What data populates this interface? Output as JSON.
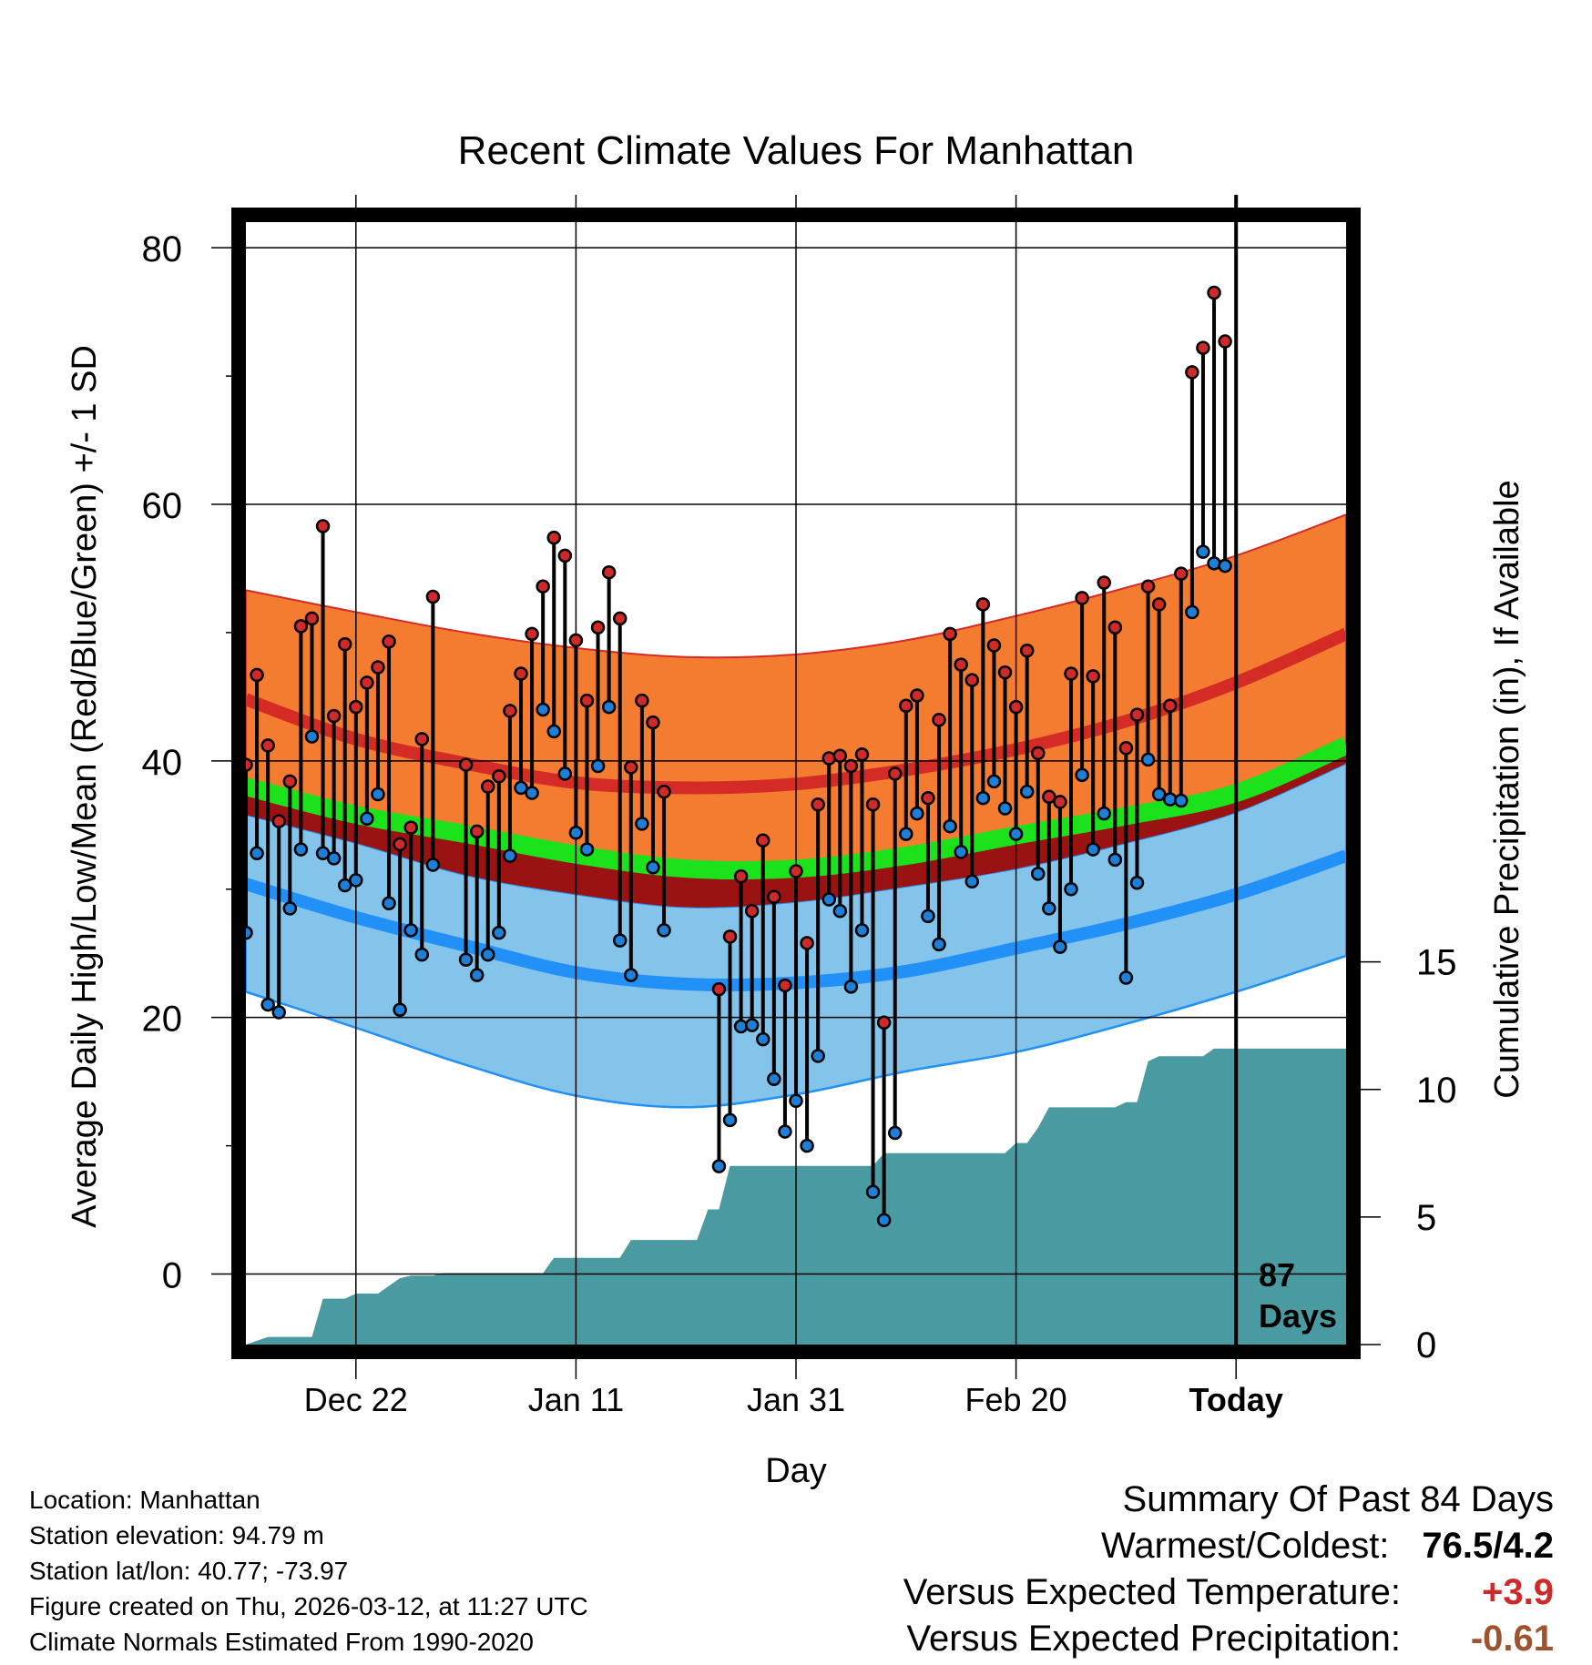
{
  "chart_data": {
    "type": "line",
    "title": "Recent Climate Values For Manhattan",
    "xlabel": "Day",
    "ylabel": "Average Daily High/Low/Mean (Red/Blue/Green) +/- 1 SD",
    "y2label": "Cumulative Precipitation (in), If Available",
    "x_range": [
      -10,
      90
    ],
    "ylim": [
      -5.5,
      82
    ],
    "y_ticks": [
      0,
      20,
      40,
      60,
      80
    ],
    "y2_ticks": [
      0,
      5,
      10,
      15
    ],
    "y2_ticklabels": [
      "0",
      "5",
      "10",
      "15"
    ],
    "y2_range": [
      0,
      44
    ],
    "x_ticks": [
      {
        "day": 0,
        "label": "Dec 22"
      },
      {
        "day": 20,
        "label": "Jan 11"
      },
      {
        "day": 40,
        "label": "Jan 31"
      },
      {
        "day": 60,
        "label": "Feb 20"
      },
      {
        "day": 80,
        "label": "Today"
      }
    ],
    "today_day": 80,
    "today_annotation": [
      "87",
      "Days"
    ],
    "colors": {
      "high_band": "#f47c30",
      "high_mean": "#d52b27",
      "mean_band": "#1be21b",
      "mean_dark": "#9b1212",
      "low_band": "#84c3ea",
      "low_mean": "#2191f7",
      "precip": "#4a9aa2",
      "high_dot": "#cf2a2a",
      "low_dot": "#1f7fd6"
    },
    "normals": {
      "days": [
        -10,
        0,
        10,
        20,
        30,
        40,
        50,
        60,
        70,
        80,
        90
      ],
      "high_plus_sd": [
        53.3,
        51.6,
        50.0,
        48.8,
        48.1,
        48.3,
        49.4,
        51.3,
        53.5,
        56.0,
        59.2
      ],
      "high_mean": [
        44.8,
        41.7,
        39.8,
        38.3,
        37.9,
        38.2,
        39.3,
        40.9,
        43.1,
        46.1,
        49.9
      ],
      "mean_upper": [
        38.0,
        35.8,
        34.3,
        32.7,
        31.6,
        31.6,
        32.6,
        34.2,
        35.7,
        37.5,
        41.2
      ],
      "mean_lower": [
        35.8,
        33.6,
        31.1,
        29.6,
        28.6,
        29.0,
        30.2,
        31.6,
        33.6,
        36.0,
        39.8
      ],
      "low_mean": [
        30.4,
        27.8,
        25.6,
        23.5,
        22.6,
        22.7,
        23.6,
        25.4,
        27.3,
        29.6,
        32.6
      ],
      "low_minus_sd": [
        22.0,
        19.2,
        16.3,
        13.9,
        13.0,
        14.0,
        15.8,
        17.3,
        19.5,
        22.0,
        24.8
      ]
    },
    "highs": [
      {
        "day": -10,
        "value": 39.7
      },
      {
        "day": -9,
        "value": 46.7
      },
      {
        "day": -8,
        "value": 41.2
      },
      {
        "day": -7,
        "value": 35.3
      },
      {
        "day": -6,
        "value": 38.4
      },
      {
        "day": -5,
        "value": 50.5
      },
      {
        "day": -4,
        "value": 51.1
      },
      {
        "day": -3,
        "value": 58.3
      },
      {
        "day": -2,
        "value": 43.5
      },
      {
        "day": -1,
        "value": 49.1
      },
      {
        "day": 0,
        "value": 44.2
      },
      {
        "day": 1,
        "value": 46.1
      },
      {
        "day": 2,
        "value": 47.3
      },
      {
        "day": 3,
        "value": 49.3
      },
      {
        "day": 4,
        "value": 33.5
      },
      {
        "day": 5,
        "value": 34.8
      },
      {
        "day": 6,
        "value": 41.7
      },
      {
        "day": 7,
        "value": 52.8
      },
      {
        "day": 10,
        "value": 39.7
      },
      {
        "day": 11,
        "value": 34.5
      },
      {
        "day": 12,
        "value": 38.0
      },
      {
        "day": 13,
        "value": 38.8
      },
      {
        "day": 14,
        "value": 43.9
      },
      {
        "day": 15,
        "value": 46.8
      },
      {
        "day": 16,
        "value": 49.9
      },
      {
        "day": 17,
        "value": 53.6
      },
      {
        "day": 18,
        "value": 57.4
      },
      {
        "day": 19,
        "value": 56.0
      },
      {
        "day": 20,
        "value": 49.4
      },
      {
        "day": 21,
        "value": 44.7
      },
      {
        "day": 22,
        "value": 50.4
      },
      {
        "day": 23,
        "value": 54.7
      },
      {
        "day": 24,
        "value": 51.1
      },
      {
        "day": 25,
        "value": 39.5
      },
      {
        "day": 26,
        "value": 44.7
      },
      {
        "day": 27,
        "value": 43.0
      },
      {
        "day": 28,
        "value": 37.6
      },
      {
        "day": 33,
        "value": 22.2
      },
      {
        "day": 34,
        "value": 26.3
      },
      {
        "day": 35,
        "value": 31.0
      },
      {
        "day": 36,
        "value": 28.3
      },
      {
        "day": 37,
        "value": 33.8
      },
      {
        "day": 38,
        "value": 29.4
      },
      {
        "day": 39,
        "value": 22.5
      },
      {
        "day": 40,
        "value": 31.4
      },
      {
        "day": 41,
        "value": 25.8
      },
      {
        "day": 42,
        "value": 36.6
      },
      {
        "day": 43,
        "value": 40.2
      },
      {
        "day": 44,
        "value": 40.4
      },
      {
        "day": 45,
        "value": 39.6
      },
      {
        "day": 46,
        "value": 40.5
      },
      {
        "day": 47,
        "value": 36.6
      },
      {
        "day": 48,
        "value": 19.6
      },
      {
        "day": 49,
        "value": 39.0
      },
      {
        "day": 50,
        "value": 44.3
      },
      {
        "day": 51,
        "value": 45.1
      },
      {
        "day": 52,
        "value": 37.1
      },
      {
        "day": 53,
        "value": 43.2
      },
      {
        "day": 54,
        "value": 49.9
      },
      {
        "day": 55,
        "value": 47.5
      },
      {
        "day": 56,
        "value": 46.3
      },
      {
        "day": 57,
        "value": 52.2
      },
      {
        "day": 58,
        "value": 49.0
      },
      {
        "day": 59,
        "value": 46.9
      },
      {
        "day": 60,
        "value": 44.2
      },
      {
        "day": 61,
        "value": 48.6
      },
      {
        "day": 62,
        "value": 40.6
      },
      {
        "day": 63,
        "value": 37.2
      },
      {
        "day": 64,
        "value": 36.8
      },
      {
        "day": 65,
        "value": 46.8
      },
      {
        "day": 66,
        "value": 52.7
      },
      {
        "day": 67,
        "value": 46.6
      },
      {
        "day": 68,
        "value": 53.9
      },
      {
        "day": 69,
        "value": 50.4
      },
      {
        "day": 70,
        "value": 41.0
      },
      {
        "day": 71,
        "value": 43.6
      },
      {
        "day": 72,
        "value": 53.6
      },
      {
        "day": 73,
        "value": 52.2
      },
      {
        "day": 74,
        "value": 44.3
      },
      {
        "day": 75,
        "value": 54.6
      },
      {
        "day": 76,
        "value": 70.3
      },
      {
        "day": 77,
        "value": 72.2
      },
      {
        "day": 78,
        "value": 76.5
      },
      {
        "day": 79,
        "value": 72.7
      }
    ],
    "lows": [
      {
        "day": -10,
        "value": 26.6
      },
      {
        "day": -9,
        "value": 32.8
      },
      {
        "day": -8,
        "value": 21.0
      },
      {
        "day": -7,
        "value": 20.4
      },
      {
        "day": -6,
        "value": 28.5
      },
      {
        "day": -5,
        "value": 33.1
      },
      {
        "day": -4,
        "value": 41.9
      },
      {
        "day": -3,
        "value": 32.8
      },
      {
        "day": -2,
        "value": 32.4
      },
      {
        "day": -1,
        "value": 30.3
      },
      {
        "day": 0,
        "value": 30.7
      },
      {
        "day": 1,
        "value": 35.5
      },
      {
        "day": 2,
        "value": 37.4
      },
      {
        "day": 3,
        "value": 28.9
      },
      {
        "day": 4,
        "value": 20.6
      },
      {
        "day": 5,
        "value": 26.8
      },
      {
        "day": 6,
        "value": 24.9
      },
      {
        "day": 7,
        "value": 31.9
      },
      {
        "day": 10,
        "value": 24.5
      },
      {
        "day": 11,
        "value": 23.3
      },
      {
        "day": 12,
        "value": 24.9
      },
      {
        "day": 13,
        "value": 26.6
      },
      {
        "day": 14,
        "value": 32.6
      },
      {
        "day": 15,
        "value": 37.9
      },
      {
        "day": 16,
        "value": 37.5
      },
      {
        "day": 17,
        "value": 44.0
      },
      {
        "day": 18,
        "value": 42.3
      },
      {
        "day": 19,
        "value": 39.0
      },
      {
        "day": 20,
        "value": 34.4
      },
      {
        "day": 21,
        "value": 33.1
      },
      {
        "day": 22,
        "value": 39.6
      },
      {
        "day": 23,
        "value": 44.2
      },
      {
        "day": 24,
        "value": 26.0
      },
      {
        "day": 25,
        "value": 23.3
      },
      {
        "day": 26,
        "value": 35.1
      },
      {
        "day": 27,
        "value": 31.7
      },
      {
        "day": 28,
        "value": 26.8
      },
      {
        "day": 33,
        "value": 8.4
      },
      {
        "day": 34,
        "value": 12.0
      },
      {
        "day": 35,
        "value": 19.3
      },
      {
        "day": 36,
        "value": 19.4
      },
      {
        "day": 37,
        "value": 18.3
      },
      {
        "day": 38,
        "value": 15.2
      },
      {
        "day": 39,
        "value": 11.1
      },
      {
        "day": 40,
        "value": 13.5
      },
      {
        "day": 41,
        "value": 10.0
      },
      {
        "day": 42,
        "value": 17.0
      },
      {
        "day": 43,
        "value": 29.2
      },
      {
        "day": 44,
        "value": 28.3
      },
      {
        "day": 45,
        "value": 22.4
      },
      {
        "day": 46,
        "value": 26.8
      },
      {
        "day": 47,
        "value": 6.4
      },
      {
        "day": 48,
        "value": 4.2
      },
      {
        "day": 49,
        "value": 11.0
      },
      {
        "day": 50,
        "value": 34.3
      },
      {
        "day": 51,
        "value": 35.9
      },
      {
        "day": 52,
        "value": 27.9
      },
      {
        "day": 53,
        "value": 25.7
      },
      {
        "day": 54,
        "value": 34.9
      },
      {
        "day": 55,
        "value": 32.9
      },
      {
        "day": 56,
        "value": 30.6
      },
      {
        "day": 57,
        "value": 37.1
      },
      {
        "day": 58,
        "value": 38.4
      },
      {
        "day": 59,
        "value": 36.3
      },
      {
        "day": 60,
        "value": 34.3
      },
      {
        "day": 61,
        "value": 37.6
      },
      {
        "day": 62,
        "value": 31.2
      },
      {
        "day": 63,
        "value": 28.5
      },
      {
        "day": 64,
        "value": 25.5
      },
      {
        "day": 65,
        "value": 30.0
      },
      {
        "day": 66,
        "value": 38.9
      },
      {
        "day": 67,
        "value": 33.1
      },
      {
        "day": 68,
        "value": 35.9
      },
      {
        "day": 69,
        "value": 32.3
      },
      {
        "day": 70,
        "value": 23.1
      },
      {
        "day": 71,
        "value": 30.5
      },
      {
        "day": 72,
        "value": 40.1
      },
      {
        "day": 73,
        "value": 37.4
      },
      {
        "day": 74,
        "value": 37.0
      },
      {
        "day": 75,
        "value": 36.9
      },
      {
        "day": 76,
        "value": 51.6
      },
      {
        "day": 77,
        "value": 56.3
      },
      {
        "day": 78,
        "value": 55.4
      },
      {
        "day": 79,
        "value": 55.2
      }
    ],
    "precip_steps": [
      [
        -10,
        0.0
      ],
      [
        -8,
        0.3
      ],
      [
        -4,
        0.3
      ],
      [
        -3,
        1.8
      ],
      [
        -1,
        1.8
      ],
      [
        0,
        2.0
      ],
      [
        2,
        2.0
      ],
      [
        4,
        2.6
      ],
      [
        5,
        2.7
      ],
      [
        7,
        2.7
      ],
      [
        8,
        2.8
      ],
      [
        17,
        2.8
      ],
      [
        18,
        3.4
      ],
      [
        24,
        3.4
      ],
      [
        25,
        4.1
      ],
      [
        31,
        4.1
      ],
      [
        32,
        5.3
      ],
      [
        33,
        5.3
      ],
      [
        34,
        7.0
      ],
      [
        47,
        7.0
      ],
      [
        48,
        7.5
      ],
      [
        59,
        7.5
      ],
      [
        60,
        7.9
      ],
      [
        61,
        7.9
      ],
      [
        62,
        8.5
      ],
      [
        63,
        9.3
      ],
      [
        69,
        9.3
      ],
      [
        70,
        9.5
      ],
      [
        71,
        9.5
      ],
      [
        72,
        11.1
      ],
      [
        73,
        11.3
      ],
      [
        77,
        11.3
      ],
      [
        78,
        11.6
      ],
      [
        90,
        11.6
      ]
    ]
  },
  "footer": {
    "location": "Location: Manhattan",
    "elevation": "Station elevation: 94.79 m",
    "latlon": "Station lat/lon: 40.77; -73.97",
    "created": "Figure created on Thu, 2026-03-12, at 11:27 UTC",
    "normals": "Climate Normals Estimated From 1990-2020"
  },
  "summary": {
    "header": "Summary Of Past 84 Days",
    "warm_label": "Warmest/Coldest:",
    "warm_value": "76.5/4.2",
    "temp_label": "Versus Expected Temperature:",
    "temp_value": "+3.9",
    "temp_color": "#cf2a2a",
    "precip_label": "Versus Expected Precipitation:",
    "precip_value": "-0.61",
    "precip_color": "#a0522d"
  }
}
